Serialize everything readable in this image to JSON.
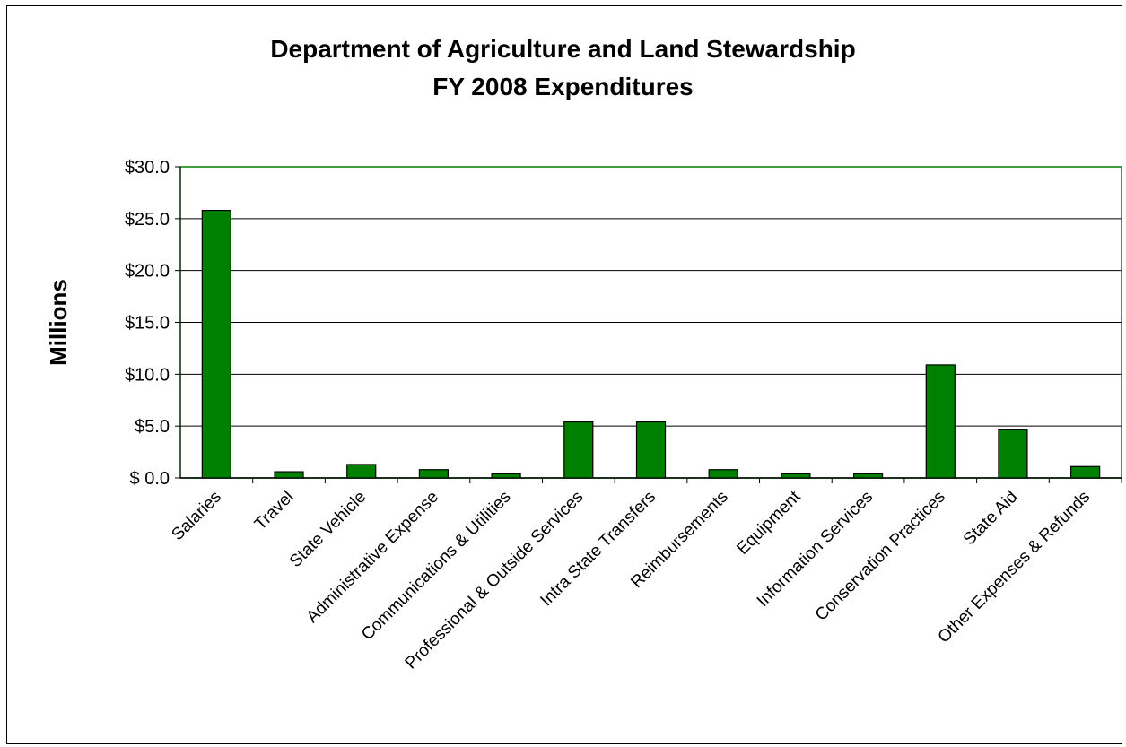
{
  "chart_data": {
    "type": "bar",
    "title": "Department of Agriculture and Land Stewardship",
    "subtitle": "FY 2008 Expenditures",
    "xlabel": "",
    "ylabel": "Millions",
    "ylim": [
      0,
      30
    ],
    "yticks": [
      0,
      5,
      10,
      15,
      20,
      25,
      30
    ],
    "ytick_labels": [
      "$ 0.0",
      "$5.0",
      "$10.0",
      "$15.0",
      "$20.0",
      "$25.0",
      "$30.0"
    ],
    "grid": true,
    "legend": "none",
    "categories": [
      "Salaries",
      "Travel",
      "State Vehicle",
      "Administrative Expense",
      "Communications & Utilities",
      "Professional & Outside Services",
      "Intra State Transfers",
      "Reimbursements",
      "Equipment",
      "Information Services",
      "Conservation Practices",
      "State Aid",
      "Other Expenses & Refunds"
    ],
    "values": [
      25.8,
      0.6,
      1.3,
      0.8,
      0.4,
      5.4,
      5.4,
      0.8,
      0.4,
      0.4,
      10.9,
      4.7,
      1.1
    ],
    "colors": {
      "bar": "#008000",
      "bar_stroke": "#000000",
      "plot_border": "#008000",
      "grid": "#000000"
    }
  }
}
